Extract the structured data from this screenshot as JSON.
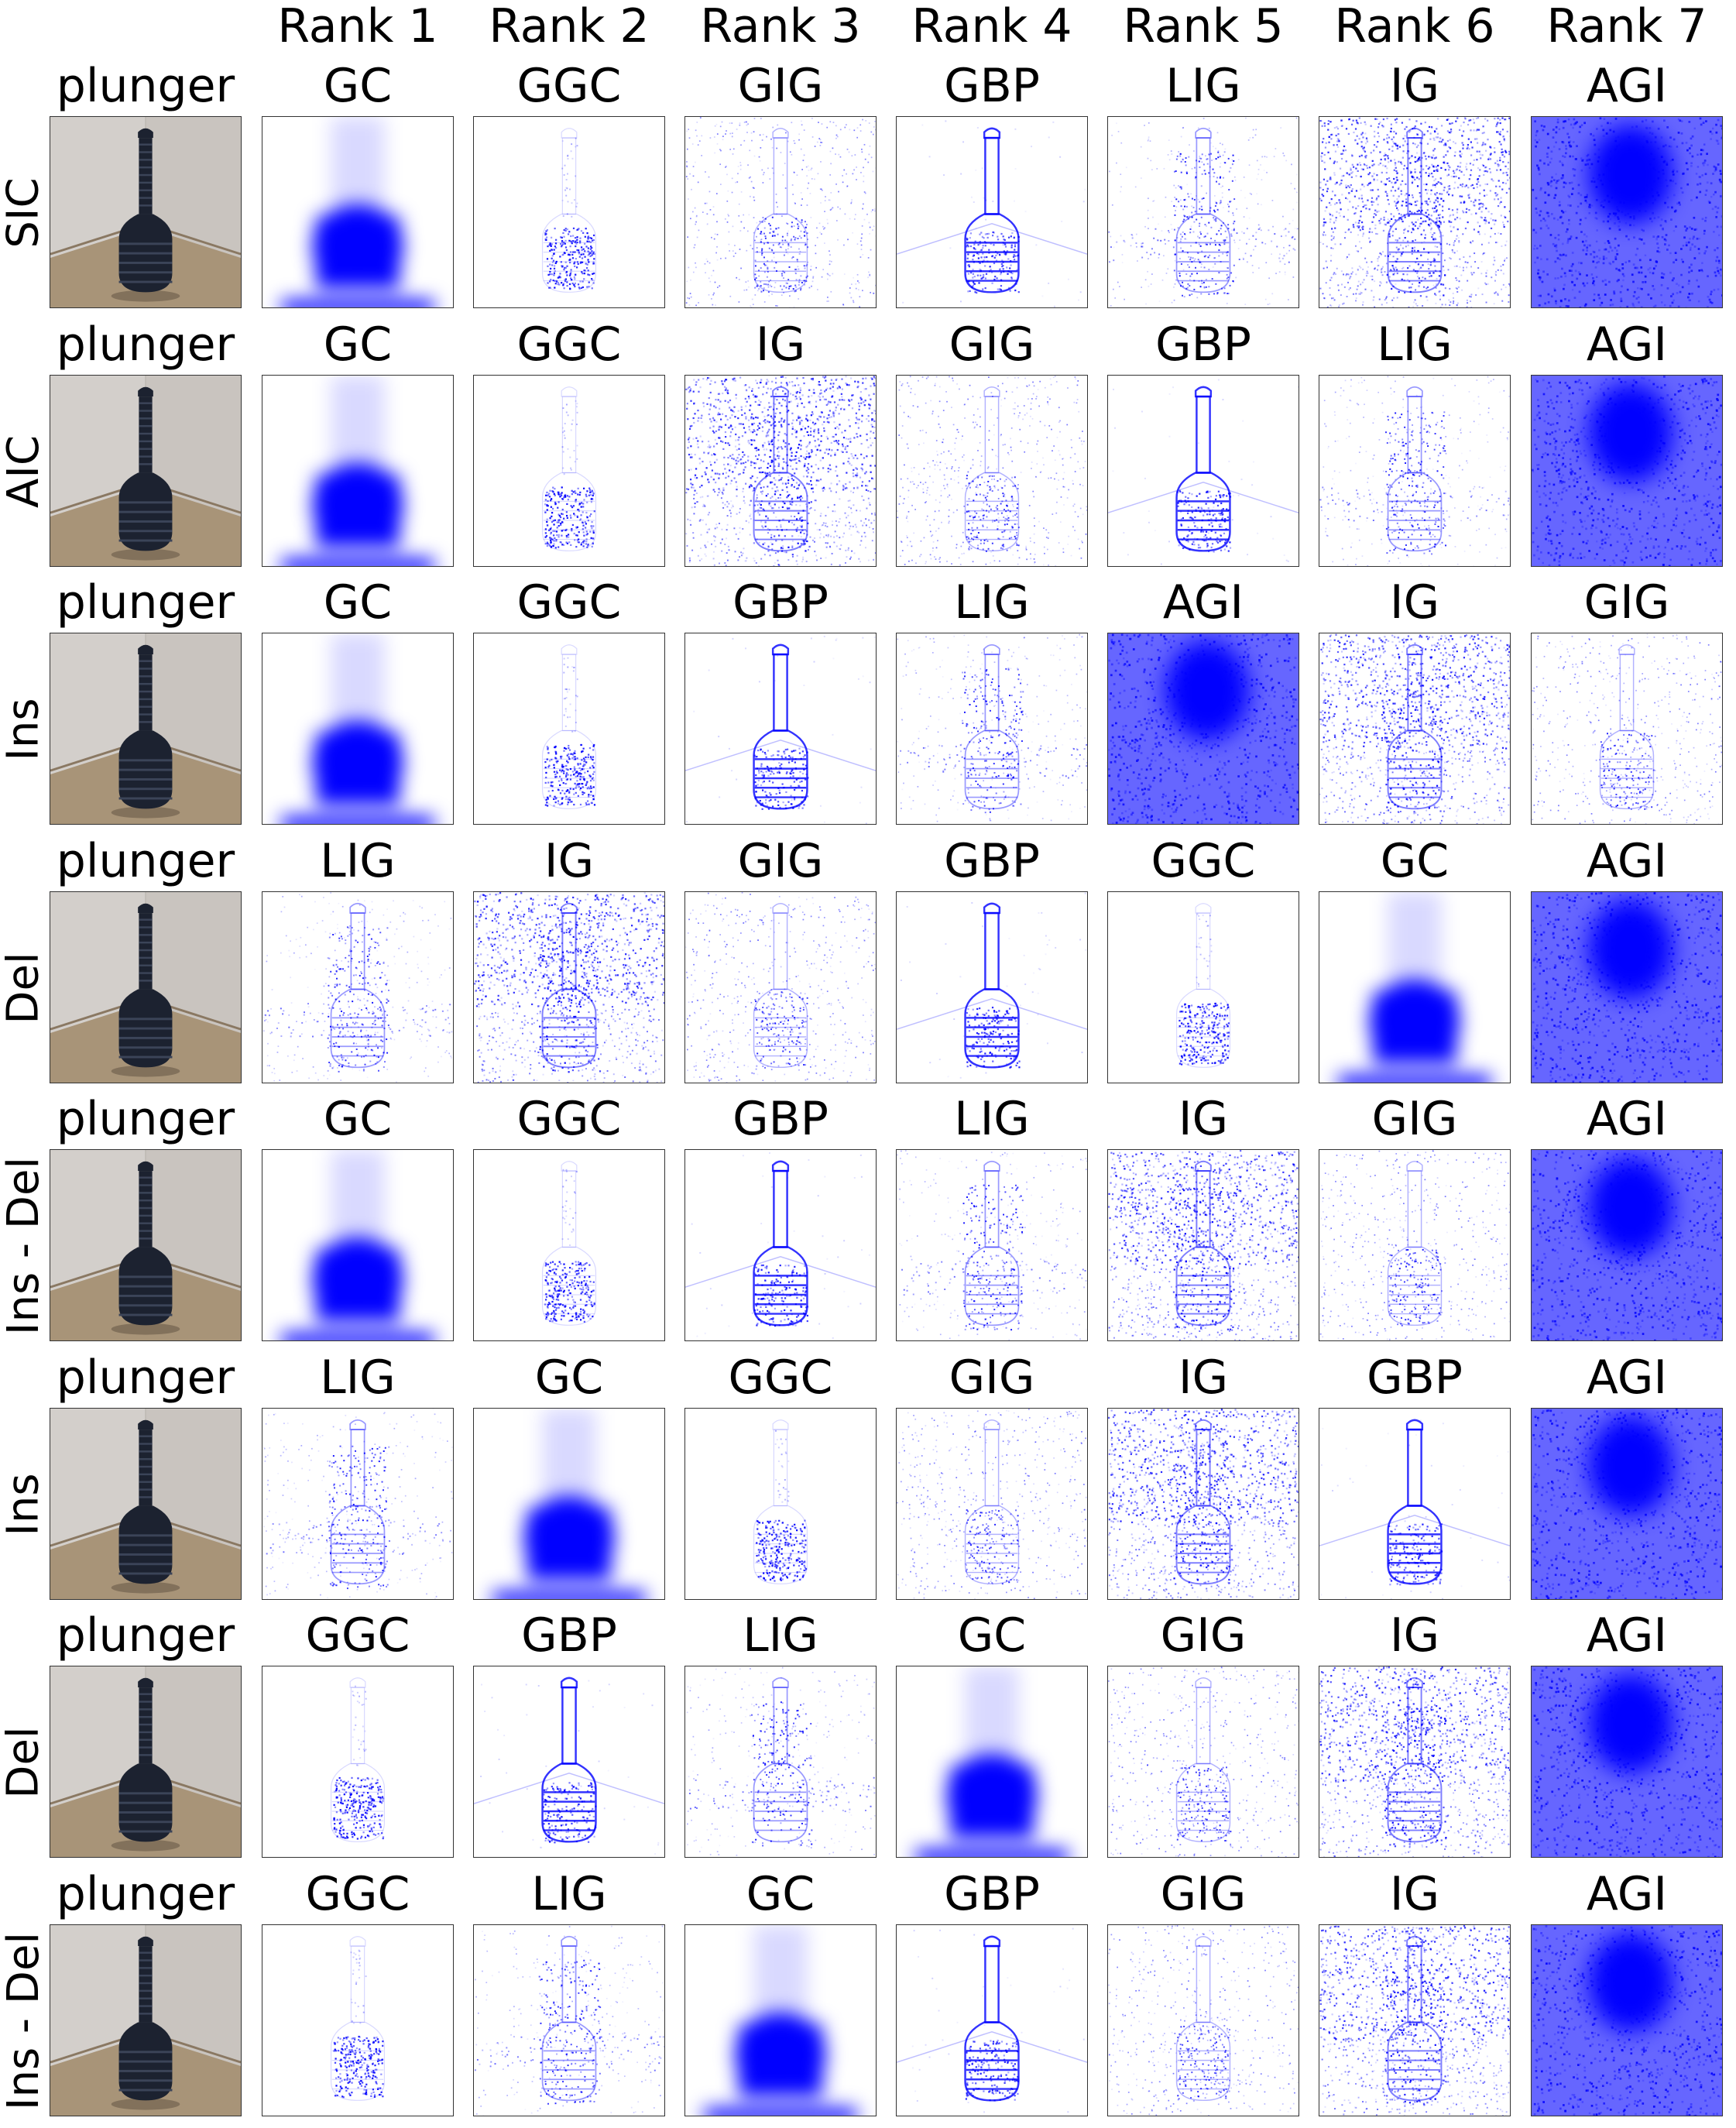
{
  "figure": {
    "rank_headers": [
      "Rank 1",
      "Rank 2",
      "Rank 3",
      "Rank 4",
      "Rank 5",
      "Rank 6",
      "Rank 7"
    ],
    "rows": [
      {
        "metric": "SIC",
        "class_label": "plunger",
        "ranking": [
          "GC",
          "GGC",
          "GIG",
          "GBP",
          "LIG",
          "IG",
          "AGI"
        ]
      },
      {
        "metric": "AIC",
        "class_label": "plunger",
        "ranking": [
          "GC",
          "GGC",
          "IG",
          "GIG",
          "GBP",
          "LIG",
          "AGI"
        ]
      },
      {
        "metric": "Ins",
        "class_label": "plunger",
        "ranking": [
          "GC",
          "GGC",
          "GBP",
          "LIG",
          "AGI",
          "IG",
          "GIG"
        ]
      },
      {
        "metric": "Del",
        "class_label": "plunger",
        "ranking": [
          "LIG",
          "IG",
          "GIG",
          "GBP",
          "GGC",
          "GC",
          "AGI"
        ]
      },
      {
        "metric": "Ins - Del",
        "class_label": "plunger",
        "ranking": [
          "GC",
          "GGC",
          "GBP",
          "LIG",
          "IG",
          "GIG",
          "AGI"
        ]
      },
      {
        "metric": "Ins",
        "class_label": "plunger",
        "ranking": [
          "LIG",
          "GC",
          "GGC",
          "GIG",
          "IG",
          "GBP",
          "AGI"
        ]
      },
      {
        "metric": "Del",
        "class_label": "plunger",
        "ranking": [
          "GGC",
          "GBP",
          "LIG",
          "GC",
          "GIG",
          "IG",
          "AGI"
        ]
      },
      {
        "metric": "Ins - Del",
        "class_label": "plunger",
        "ranking": [
          "GGC",
          "LIG",
          "GC",
          "GBP",
          "GIG",
          "IG",
          "AGI"
        ]
      }
    ],
    "colors": {
      "saliency": "#0000ff",
      "wall": "#c9c4bf",
      "floor": "#a89478",
      "plunger": "#1c2230",
      "border": "#333333"
    }
  }
}
